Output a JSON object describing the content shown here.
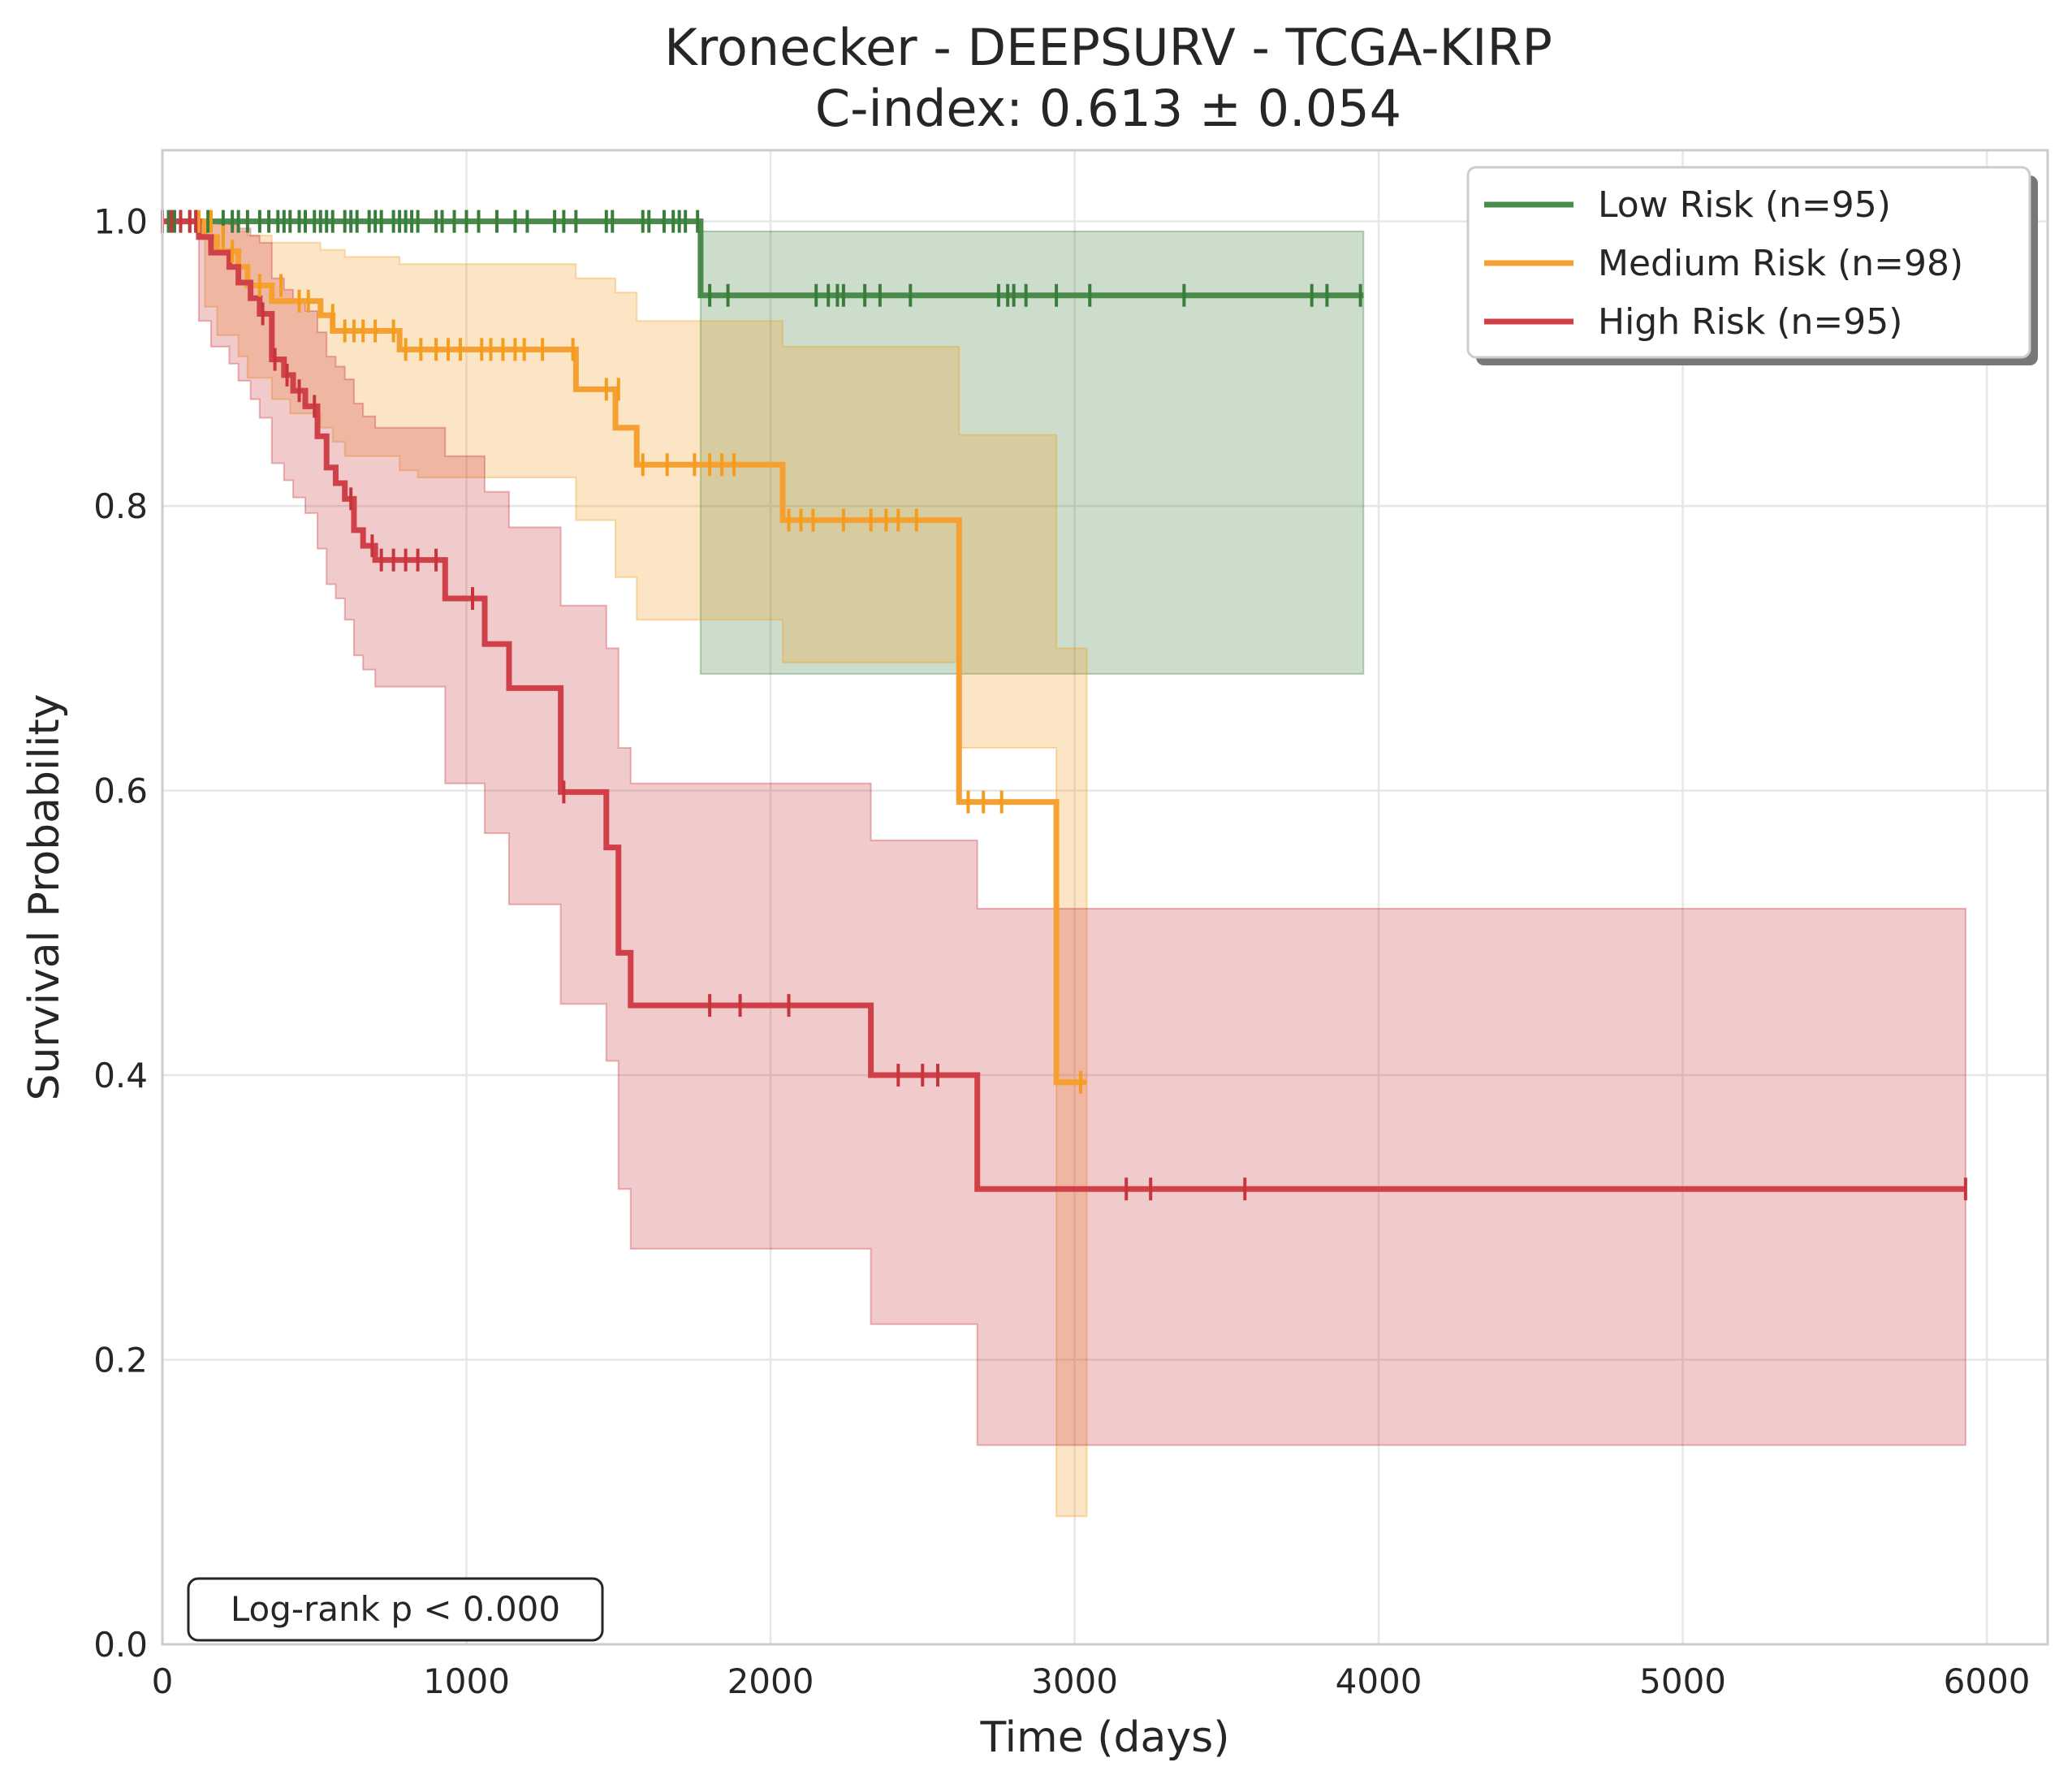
{
  "chart_data": {
    "type": "line",
    "subtype": "kaplan-meier",
    "title": "Kronecker - DEEPSURV - TCGA-KIRP",
    "subtitle": "C-index: 0.613 ± 0.054",
    "xlabel": "Time (days)",
    "ylabel": "Survival Probability",
    "xlim": [
      0,
      6200
    ],
    "ylim": [
      0,
      1.05
    ],
    "xticks": [
      0,
      1000,
      2000,
      3000,
      4000,
      5000,
      6000
    ],
    "xtick_labels": [
      "0",
      "1000",
      "2000",
      "3000",
      "4000",
      "5000",
      "6000"
    ],
    "yticks": [
      0,
      0.2,
      0.4,
      0.6,
      0.8,
      1.0
    ],
    "ytick_labels": [
      "0.0",
      "0.2",
      "0.4",
      "0.6",
      "0.8",
      "1.0"
    ],
    "grid": true,
    "legend_position": "top-right",
    "annotation": "Log-rank p < 0.000",
    "series": [
      {
        "name": "Low Risk (n=95)",
        "color": "#3a7d3a",
        "line_color": "#4a8a4a",
        "x": [
          0,
          1770,
          3950
        ],
        "y": [
          1.0,
          0.948,
          0.948
        ],
        "ci_x": [
          0,
          1770,
          3950
        ],
        "ci_upper": [
          1.0,
          0.993,
          0.993
        ],
        "ci_lower": [
          1.0,
          0.682,
          0.682
        ],
        "censor_x": [
          0,
          20,
          40,
          60,
          90,
          110,
          150,
          200,
          230,
          250,
          280,
          320,
          350,
          380,
          400,
          420,
          450,
          470,
          500,
          520,
          540,
          560,
          600,
          620,
          640,
          680,
          700,
          720,
          760,
          780,
          800,
          820,
          840,
          900,
          920,
          960,
          1000,
          1040,
          1100,
          1160,
          1200,
          1290,
          1320,
          1360,
          1460,
          1480,
          1580,
          1600,
          1650,
          1680,
          1700,
          1720,
          1760,
          1800,
          1860,
          2150,
          2190,
          2220,
          2240,
          2310,
          2360,
          2460,
          2750,
          2780,
          2800,
          2840,
          2940,
          3050,
          3360,
          3780,
          3830,
          3940
        ],
        "censor_y": [
          1.0,
          1.0,
          1.0,
          1.0,
          1.0,
          1.0,
          1.0,
          1.0,
          1.0,
          1.0,
          1.0,
          1.0,
          1.0,
          1.0,
          1.0,
          1.0,
          1.0,
          1.0,
          1.0,
          1.0,
          1.0,
          1.0,
          1.0,
          1.0,
          1.0,
          1.0,
          1.0,
          1.0,
          1.0,
          1.0,
          1.0,
          1.0,
          1.0,
          1.0,
          1.0,
          1.0,
          1.0,
          1.0,
          1.0,
          1.0,
          1.0,
          1.0,
          1.0,
          1.0,
          1.0,
          1.0,
          1.0,
          1.0,
          1.0,
          1.0,
          1.0,
          1.0,
          1.0,
          0.948,
          0.948,
          0.948,
          0.948,
          0.948,
          0.948,
          0.948,
          0.948,
          0.948,
          0.948,
          0.948,
          0.948,
          0.948,
          0.948,
          0.948,
          0.948,
          0.948,
          0.948,
          0.948
        ]
      },
      {
        "name": "Medium Risk (n=98)",
        "color": "#f39c1e",
        "line_color": "#f5a030",
        "x": [
          0,
          140,
          180,
          250,
          280,
          360,
          420,
          520,
          560,
          600,
          780,
          840,
          1360,
          1490,
          1560,
          2040,
          2620,
          2940,
          3040
        ],
        "y": [
          1.0,
          0.989,
          0.979,
          0.968,
          0.955,
          0.944,
          0.944,
          0.934,
          0.923,
          0.923,
          0.91,
          0.91,
          0.882,
          0.855,
          0.829,
          0.79,
          0.592,
          0.395,
          0.395
        ],
        "ci_x": [
          0,
          140,
          180,
          250,
          280,
          360,
          420,
          520,
          560,
          600,
          780,
          840,
          1360,
          1490,
          1560,
          2040,
          2620,
          2940,
          3040
        ],
        "ci_upper": [
          1.0,
          1.0,
          0.998,
          0.993,
          0.99,
          0.985,
          0.985,
          0.98,
          0.98,
          0.975,
          0.97,
          0.97,
          0.96,
          0.95,
          0.93,
          0.912,
          0.85,
          0.7,
          0.7
        ],
        "ci_lower": [
          1.0,
          0.94,
          0.92,
          0.905,
          0.89,
          0.875,
          0.865,
          0.855,
          0.845,
          0.835,
          0.825,
          0.82,
          0.79,
          0.75,
          0.72,
          0.69,
          0.63,
          0.09,
          0.09
        ],
        "censor_x": [
          120,
          160,
          200,
          230,
          320,
          390,
          450,
          480,
          560,
          600,
          630,
          660,
          700,
          760,
          800,
          850,
          900,
          940,
          980,
          1050,
          1080,
          1120,
          1160,
          1190,
          1250,
          1350,
          1460,
          1500,
          1580,
          1660,
          1750,
          1800,
          1840,
          1880,
          2060,
          2100,
          2140,
          2240,
          2330,
          2380,
          2420,
          2480,
          2650,
          2700,
          2760,
          3020
        ],
        "censor_y": [
          1.0,
          1.0,
          0.989,
          0.979,
          0.955,
          0.955,
          0.944,
          0.944,
          0.934,
          0.923,
          0.923,
          0.923,
          0.923,
          0.923,
          0.91,
          0.91,
          0.91,
          0.91,
          0.91,
          0.91,
          0.91,
          0.91,
          0.91,
          0.91,
          0.91,
          0.91,
          0.882,
          0.882,
          0.829,
          0.829,
          0.829,
          0.829,
          0.829,
          0.829,
          0.79,
          0.79,
          0.79,
          0.79,
          0.79,
          0.79,
          0.79,
          0.79,
          0.592,
          0.592,
          0.592,
          0.395
        ]
      },
      {
        "name": "High Risk (n=95)",
        "color": "#c8343b",
        "line_color": "#d04048",
        "x": [
          0,
          120,
          160,
          220,
          250,
          290,
          320,
          360,
          400,
          430,
          470,
          510,
          540,
          570,
          600,
          630,
          660,
          700,
          930,
          1060,
          1140,
          1310,
          1460,
          1500,
          1540,
          2330,
          2680,
          5930
        ],
        "y": [
          1.0,
          0.989,
          0.978,
          0.968,
          0.957,
          0.946,
          0.935,
          0.903,
          0.892,
          0.881,
          0.87,
          0.849,
          0.827,
          0.816,
          0.805,
          0.783,
          0.772,
          0.762,
          0.735,
          0.703,
          0.672,
          0.599,
          0.56,
          0.486,
          0.449,
          0.4,
          0.32,
          0.32
        ],
        "ci_x": [
          0,
          120,
          160,
          220,
          250,
          290,
          320,
          360,
          400,
          430,
          470,
          510,
          540,
          570,
          600,
          630,
          660,
          700,
          930,
          1060,
          1140,
          1310,
          1460,
          1500,
          1540,
          2330,
          2680,
          5930
        ],
        "ci_upper": [
          1.0,
          1.0,
          1.0,
          0.998,
          0.995,
          0.99,
          0.985,
          0.96,
          0.952,
          0.945,
          0.937,
          0.922,
          0.905,
          0.898,
          0.889,
          0.872,
          0.863,
          0.855,
          0.835,
          0.81,
          0.785,
          0.73,
          0.7,
          0.63,
          0.605,
          0.565,
          0.517,
          0.517
        ],
        "ci_lower": [
          1.0,
          0.93,
          0.912,
          0.9,
          0.888,
          0.875,
          0.862,
          0.83,
          0.818,
          0.806,
          0.795,
          0.77,
          0.745,
          0.735,
          0.72,
          0.695,
          0.685,
          0.673,
          0.605,
          0.57,
          0.52,
          0.45,
          0.41,
          0.32,
          0.278,
          0.225,
          0.14,
          0.14
        ],
        "censor_x": [
          0,
          30,
          60,
          90,
          110,
          330,
          370,
          410,
          450,
          500,
          620,
          690,
          720,
          760,
          800,
          840,
          900,
          1020,
          1320,
          1800,
          1900,
          2060,
          2420,
          2500,
          2550,
          3170,
          3250,
          3560,
          5930
        ],
        "censor_y": [
          1.0,
          1.0,
          1.0,
          1.0,
          1.0,
          0.935,
          0.903,
          0.892,
          0.881,
          0.87,
          0.805,
          0.772,
          0.762,
          0.762,
          0.762,
          0.762,
          0.762,
          0.735,
          0.599,
          0.449,
          0.449,
          0.449,
          0.4,
          0.4,
          0.4,
          0.32,
          0.32,
          0.32,
          0.32
        ]
      }
    ]
  }
}
